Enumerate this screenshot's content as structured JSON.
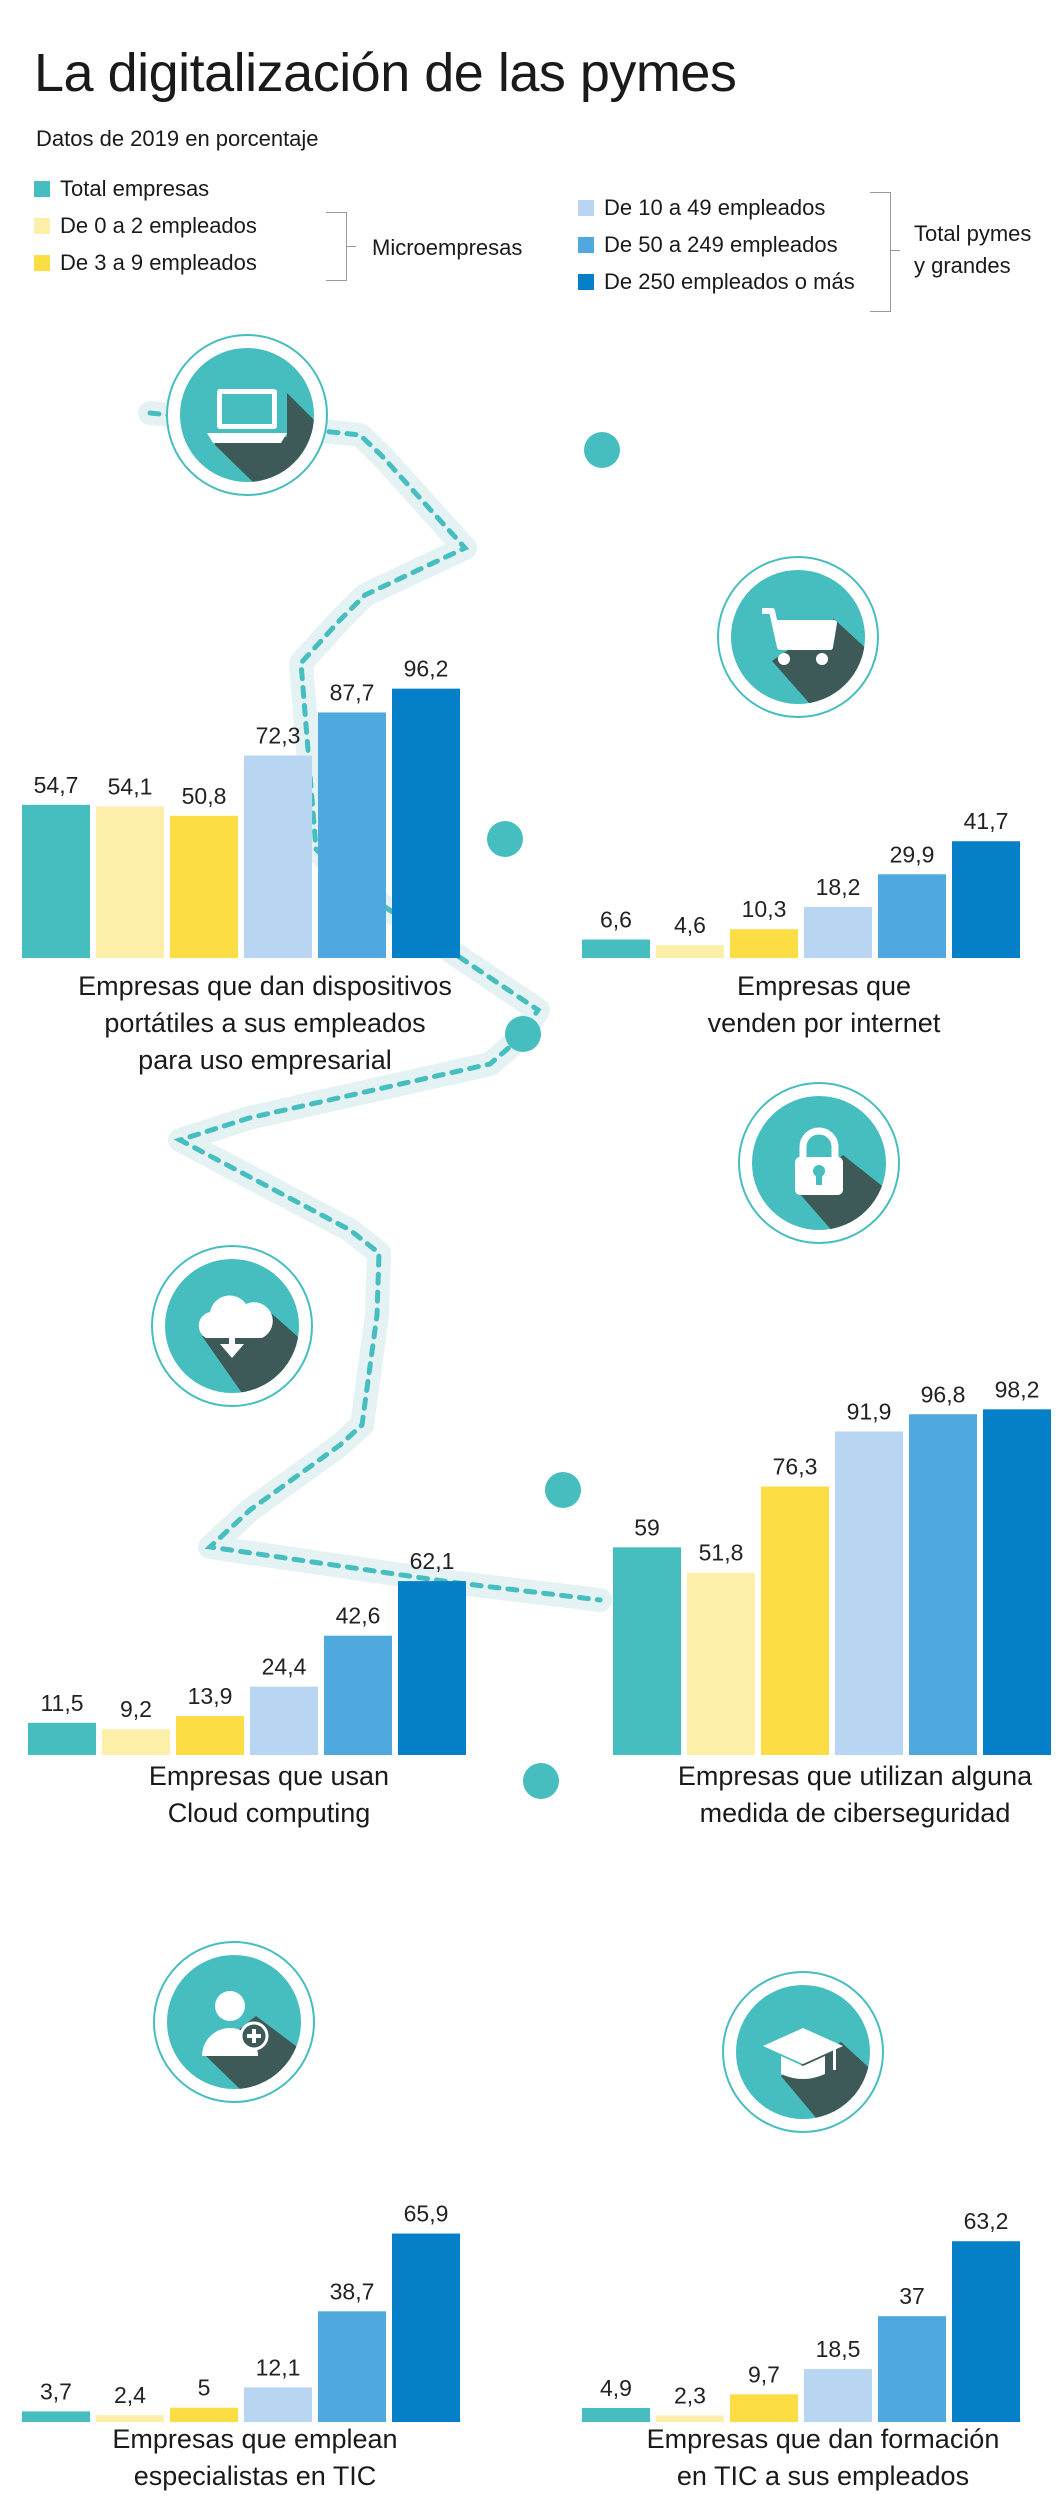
{
  "title": "La digitalización de las pymes",
  "subtitle": "Datos de 2019 en porcentaje",
  "legend": {
    "items": [
      {
        "label": "Total empresas",
        "color": "#46bdbf"
      },
      {
        "label": "De 0 a 2 empleados",
        "color": "#fdeeaa"
      },
      {
        "label": "De 3 a 9 empleados",
        "color": "#fcdd44"
      },
      {
        "label": "De 10 a 49 empleados",
        "color": "#b8d6f2"
      },
      {
        "label": "De 50 a 249 empleados",
        "color": "#4fa8de"
      },
      {
        "label": "De 250 empleados o más",
        "color": "#0580c8"
      }
    ],
    "group_micro": "Microempresas",
    "group_total": "Total pymes\ny grandes"
  },
  "icons": [
    "laptop-icon",
    "shopping-cart-icon",
    "lock-icon",
    "cloud-download-icon",
    "user-plus-icon",
    "graduation-cap-icon"
  ],
  "chart_data": [
    {
      "type": "bar",
      "title": "Empresas que dan dispositivos\nportátiles a sus empleados\npara uso empresarial",
      "categories": [
        "Total empresas",
        "De 0 a 2 empleados",
        "De 3 a 9 empleados",
        "De 10 a 49 empleados",
        "De 50 a 249 empleados",
        "De 250 empleados o más"
      ],
      "values": [
        54.7,
        54.1,
        50.8,
        72.3,
        87.7,
        96.2
      ],
      "labels": [
        "54,7",
        "54,1",
        "50,8",
        "72,3",
        "87,7",
        "96,2"
      ]
    },
    {
      "type": "bar",
      "title": "Empresas que\nvenden por internet",
      "categories": [
        "Total empresas",
        "De 0 a 2 empleados",
        "De 3 a 9 empleados",
        "De 10 a 49 empleados",
        "De 50 a 249 empleados",
        "De 250 empleados o más"
      ],
      "values": [
        6.6,
        4.6,
        10.3,
        18.2,
        29.9,
        41.7
      ],
      "labels": [
        "6,6",
        "4,6",
        "10,3",
        "18,2",
        "29,9",
        "41,7"
      ]
    },
    {
      "type": "bar",
      "title": "Empresas que usan\nCloud computing",
      "categories": [
        "Total empresas",
        "De 0 a 2 empleados",
        "De 3 a 9 empleados",
        "De 10 a 49 empleados",
        "De 50 a 249 empleados",
        "De 250 empleados o más"
      ],
      "values": [
        11.5,
        9.2,
        13.9,
        24.4,
        42.6,
        62.1
      ],
      "labels": [
        "11,5",
        "9,2",
        "13,9",
        "24,4",
        "42,6",
        "62,1"
      ]
    },
    {
      "type": "bar",
      "title": "Empresas que utilizan alguna\nmedida de ciberseguridad",
      "categories": [
        "Total empresas",
        "De 0 a 2 empleados",
        "De 3 a 9 empleados",
        "De 10 a 49 empleados",
        "De 50 a 249 empleados",
        "De 250 empleados o más"
      ],
      "values": [
        59,
        51.8,
        76.3,
        91.9,
        96.8,
        98.2
      ],
      "labels": [
        "59",
        "51,8",
        "76,3",
        "91,9",
        "96,8",
        "98,2"
      ]
    },
    {
      "type": "bar",
      "title": "Empresas que emplean\nespecialistas en TIC",
      "categories": [
        "Total empresas",
        "De 0 a 2 empleados",
        "De 3 a 9 empleados",
        "De 10 a 49 empleados",
        "De 50 a 249 empleados",
        "De 250 empleados o más"
      ],
      "values": [
        3.7,
        2.4,
        5,
        12.1,
        38.7,
        65.9
      ],
      "labels": [
        "3,7",
        "2,4",
        "5",
        "12,1",
        "38,7",
        "65,9"
      ]
    },
    {
      "type": "bar",
      "title": "Empresas que dan formación\nen TIC a sus empleados",
      "categories": [
        "Total empresas",
        "De 0 a 2 empleados",
        "De 3 a 9 empleados",
        "De 10 a 49 empleados",
        "De 50 a 249 empleados",
        "De 250 empleados o más"
      ],
      "values": [
        4.9,
        2.3,
        9.7,
        18.5,
        37,
        63.2
      ],
      "labels": [
        "4,9",
        "2,3",
        "9,7",
        "18,5",
        "37",
        "63,2"
      ]
    }
  ]
}
